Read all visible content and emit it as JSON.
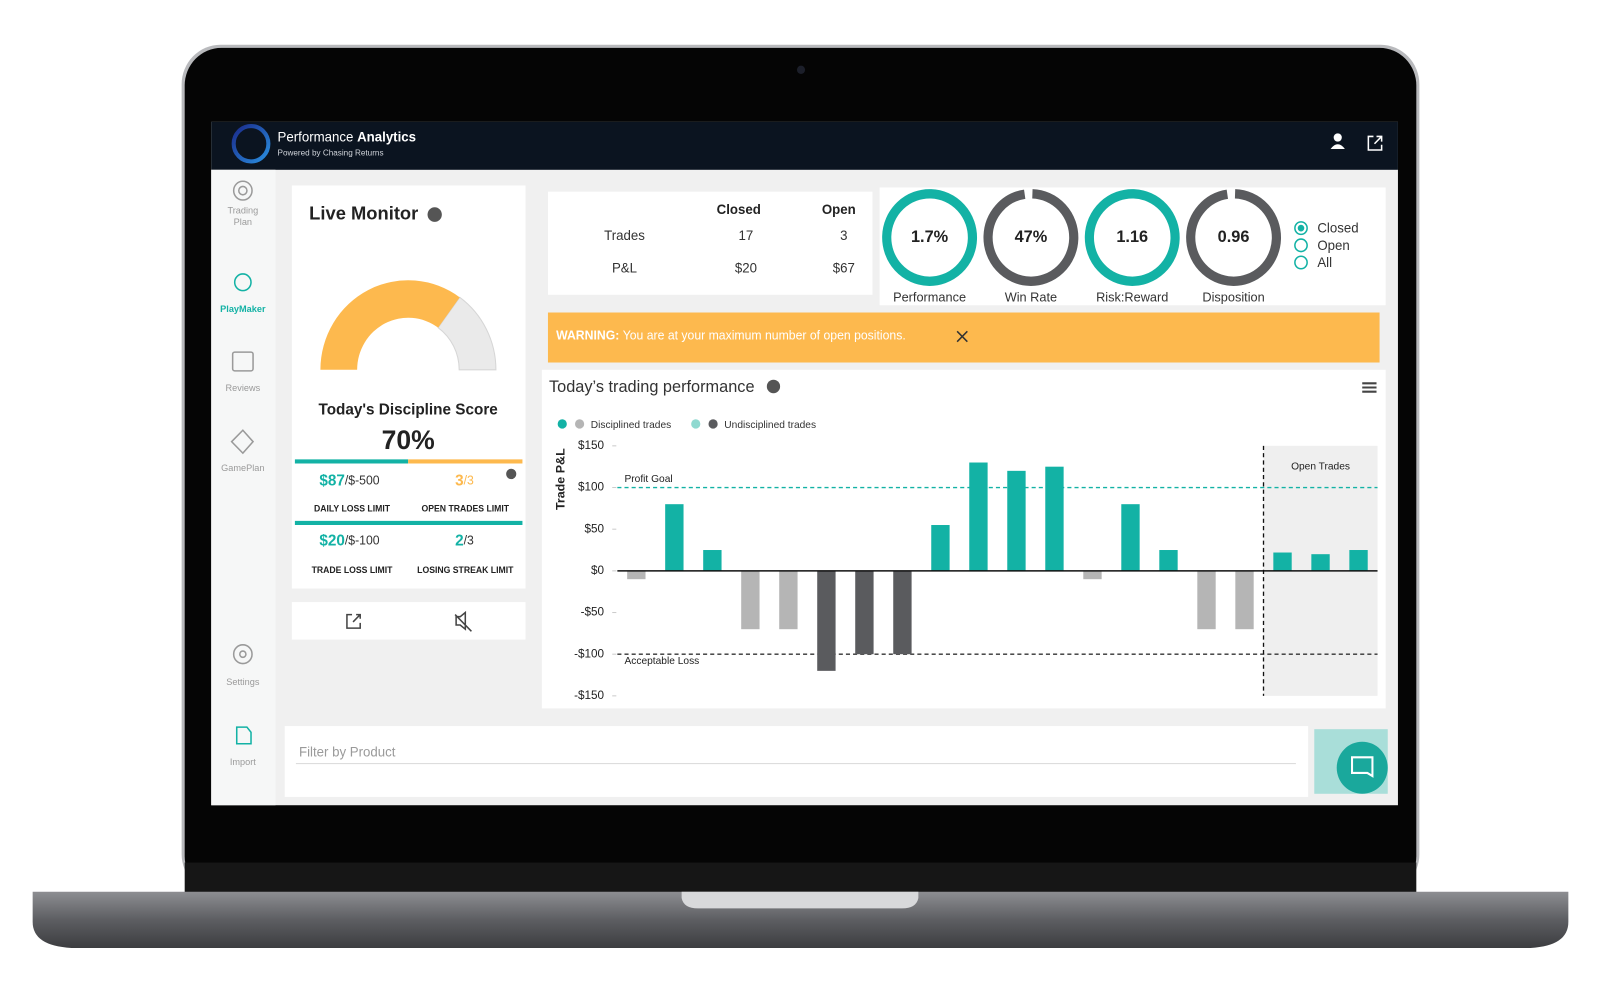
{
  "header": {
    "brand_light": "Performance",
    "brand_bold": "Analytics",
    "tagline": "Powered by Chasing Returns"
  },
  "sidebar": [
    "Trading Plan",
    "PlayMaker",
    "Reviews",
    "GamePlan",
    "Settings",
    "Import"
  ],
  "live_monitor": {
    "title": "Live Monitor",
    "score_label": "Today's Discipline Score",
    "score": {
      "value": 70,
      "label": "70%"
    },
    "score_range": [
      0,
      100
    ],
    "limits": [
      {
        "value": "$87",
        "limit": "/$-500",
        "name": "DAILY LOSS LIMIT"
      },
      {
        "value": "3",
        "limit": "/3",
        "name": "OPEN TRADES LIMIT"
      },
      {
        "value": "$20",
        "limit": "/$-100",
        "name": "TRADE LOSS LIMIT"
      },
      {
        "value": "2",
        "limit": "/3",
        "name": "LOSING STREAK LIMIT"
      }
    ]
  },
  "summary": {
    "columns": [
      "Closed",
      "Open"
    ],
    "rows": [
      [
        "Trades",
        "17",
        "3"
      ],
      [
        "P&L",
        "$20",
        "$67"
      ]
    ]
  },
  "metrics": [
    {
      "value": "1.7%",
      "label": "Performance"
    },
    {
      "value": "47%",
      "label": "Win Rate"
    },
    {
      "value": "1.16",
      "label": "Risk:Reward"
    },
    {
      "value": "0.96",
      "label": "Disposition"
    }
  ],
  "view_options": [
    "Closed",
    "Open",
    "All"
  ],
  "warning": {
    "prefix": "WARNING:",
    "message": "You are at your maximum number of open positions."
  },
  "chart_data": {
    "type": "bar",
    "title": "Today’s trading performance",
    "ylabel": "Trade P&L",
    "categories": [
      null,
      null,
      null,
      null,
      null,
      null,
      null,
      null,
      null,
      null,
      null,
      null,
      null,
      null,
      null,
      null,
      null,
      null,
      null,
      null
    ],
    "series": [
      {
        "name": "Disciplined trades",
        "colors": [
          "#13b2a5",
          "#b5b5b5"
        ],
        "values": [
          -10,
          80,
          25,
          -70,
          -70,
          null,
          null,
          null,
          55,
          130,
          120,
          125,
          -10,
          80,
          25,
          -70,
          -70,
          22,
          20,
          25
        ]
      },
      {
        "name": "Undisciplined trades",
        "colors": [
          "#8fd9d0",
          "#5a5b5e"
        ],
        "values": [
          null,
          null,
          null,
          null,
          null,
          -120,
          -100,
          -100,
          null,
          null,
          null,
          null,
          null,
          null,
          null,
          null,
          null,
          null,
          null,
          null
        ]
      }
    ],
    "ylim": [
      -150,
      150
    ],
    "yticks": [
      {
        "value": 150,
        "label": "$150"
      },
      {
        "value": 100,
        "label": "$100"
      },
      {
        "value": 50,
        "label": "$50"
      },
      {
        "value": 0,
        "label": "$0"
      },
      {
        "value": -50,
        "label": "-$50"
      },
      {
        "value": -100,
        "label": "-$100"
      },
      {
        "value": -150,
        "label": "-$150"
      }
    ],
    "reference_lines": [
      {
        "value": 100,
        "label": "Profit Goal",
        "color": "#13b2a5"
      },
      {
        "value": -100,
        "label": "Acceptable Loss",
        "color": "#333333"
      }
    ],
    "shaded_region": {
      "label": "Open Trades"
    }
  },
  "filter": {
    "placeholder": "Filter by Product"
  }
}
